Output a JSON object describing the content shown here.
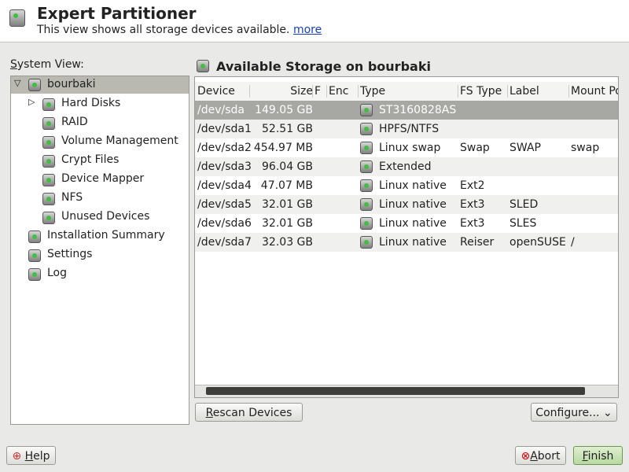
{
  "header": {
    "title": "Expert Partitioner",
    "subtitle": "This view shows all storage devices available.",
    "link": "more"
  },
  "sidebar": {
    "label": "System View:",
    "root": "bourbaki",
    "children": [
      "Hard Disks",
      "RAID",
      "Volume Management",
      "Crypt Files",
      "Device Mapper",
      "NFS",
      "Unused Devices"
    ],
    "items": [
      "Installation Summary",
      "Settings",
      "Log"
    ]
  },
  "main": {
    "title": "Available Storage on bourbaki",
    "table": {
      "columns": [
        "Device",
        "Size",
        "F",
        "Enc",
        "Type",
        "FS Type",
        "Label",
        "Mount Point"
      ],
      "rows": [
        [
          "/dev/sda",
          "149.05 GB",
          null,
          null,
          "ST3160828AS",
          null,
          null,
          null
        ],
        [
          "/dev/sda1",
          "52.51 GB",
          null,
          null,
          "HPFS/NTFS",
          null,
          null,
          null
        ],
        [
          "/dev/sda2",
          "454.97 MB",
          null,
          null,
          "Linux swap",
          "Swap",
          "SWAP",
          "swap"
        ],
        [
          "/dev/sda3",
          "96.04 GB",
          null,
          null,
          "Extended",
          null,
          null,
          null
        ],
        [
          "/dev/sda4",
          "47.07 MB",
          null,
          null,
          "Linux native",
          "Ext2",
          null,
          null
        ],
        [
          "/dev/sda5",
          "32.01 GB",
          null,
          null,
          "Linux native",
          "Ext3",
          "SLED",
          null
        ],
        [
          "/dev/sda6",
          "32.01 GB",
          null,
          null,
          "Linux native",
          "Ext3",
          "SLES",
          null
        ],
        [
          "/dev/sda7",
          "32.03 GB",
          null,
          null,
          "Linux native",
          "Reiser",
          "openSUSE",
          "/"
        ]
      ]
    }
  },
  "buttons": {
    "rescan": "Rescan Devices",
    "configure": "Configure...",
    "help": "Help",
    "abort": "Abort",
    "finish": "Finish"
  }
}
